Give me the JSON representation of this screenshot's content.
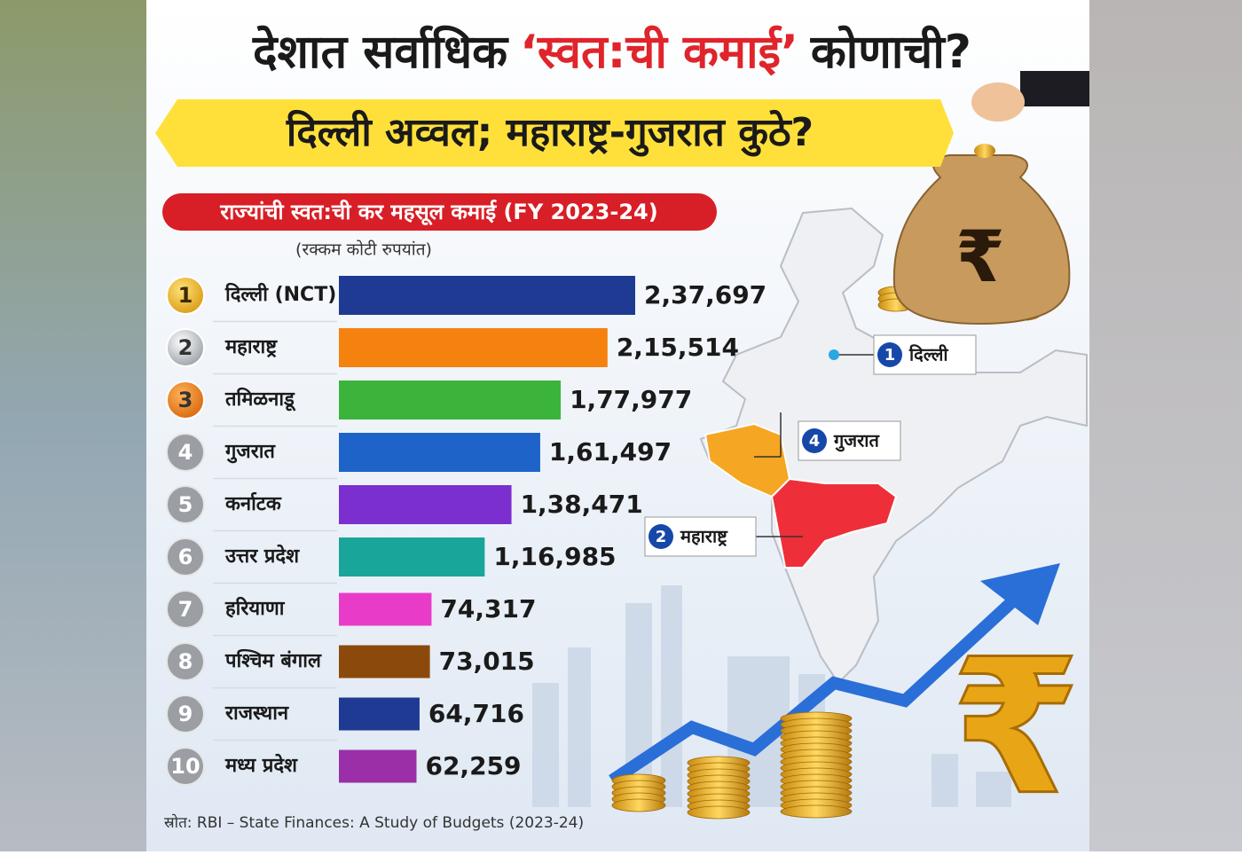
{
  "chart_data": {
    "type": "bar",
    "orientation": "horizontal",
    "title_parts": [
      "देशात सर्वाधिक",
      "‘स्वत:ची कमाई’",
      "कोणाची?"
    ],
    "subtitle": "दिल्ली अव्वल; महाराष्ट्र-गुजरात कुठे?",
    "chart_header": "राज्यांची स्वत:ची कर महसूल कमाई (FY 2023-24)",
    "unit_note": "(रक्कम कोटी रुपयांत)",
    "ranks": [
      1,
      2,
      3,
      4,
      5,
      6,
      7,
      8,
      9,
      10
    ],
    "categories": [
      "दिल्ली (NCT)",
      "महाराष्ट्र",
      "तमिळनाडू",
      "गुजरात",
      "कर्नाटक",
      "उत्तर प्रदेश",
      "हरियाणा",
      "पश्चिम बंगाल",
      "राजस्थान",
      "मध्य प्रदेश"
    ],
    "values": [
      237697,
      215514,
      177977,
      161497,
      138471,
      116985,
      74317,
      73015,
      64716,
      62259
    ],
    "value_labels": [
      "2,37,697",
      "2,15,514",
      "1,77,977",
      "1,61,497",
      "1,38,471",
      "1,16,985",
      "74,317",
      "73,015",
      "64,716",
      "62,259"
    ],
    "colors": [
      "#1f3a93",
      "#f5820f",
      "#3cb43c",
      "#1e63c8",
      "#7b2fcf",
      "#1aa59a",
      "#e83cc8",
      "#8b4a0c",
      "#1f3a93",
      "#9b2fa8"
    ],
    "map_labels": [
      {
        "rank": 1,
        "name": "दिल्ली"
      },
      {
        "rank": 4,
        "name": "गुजरात"
      },
      {
        "rank": 2,
        "name": "महाराष्ट्र"
      }
    ],
    "source": "स्रोत: RBI – State Finances: A Study of Budgets (2023-24)"
  }
}
